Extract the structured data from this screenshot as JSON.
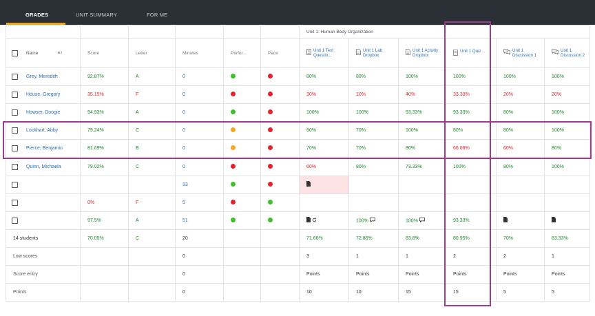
{
  "tabs": [
    {
      "label": "GRADES",
      "active": true
    },
    {
      "label": "UNIT SUMMARY",
      "active": false
    },
    {
      "label": "FOR ME",
      "active": false
    }
  ],
  "unit_title": "Unit 1: Human Body Organization",
  "columns": {
    "name": "Name",
    "score": "Score",
    "letter": "Letter",
    "minutes": "Minutes",
    "performance": "Perfor...",
    "pace": "Pace"
  },
  "assignments": [
    {
      "label": "Unit 1 Text Questio...",
      "icon": "document-icon"
    },
    {
      "label": "Unit 1 Lab Dropbox",
      "icon": "dropbox-icon"
    },
    {
      "label": "Unit 1 Activity Dropbox",
      "icon": "dropbox-icon"
    },
    {
      "label": "Unit 1 Quiz",
      "icon": "quiz-icon"
    },
    {
      "label": "Unit 1 Discussion 1",
      "icon": "discussion-icon"
    },
    {
      "label": "Unit 1 Discussion 2",
      "icon": "discussion-icon"
    }
  ],
  "students": [
    {
      "name": "Grey, Meredith",
      "score": "92.87%",
      "letter": "A",
      "minutes": "0",
      "performance": "green",
      "pace": "red",
      "grades": [
        "80%",
        "80%",
        "100%",
        "100%",
        "100%",
        "100%"
      ]
    },
    {
      "name": "House, Gregory",
      "score": "35.15%",
      "letter": "F",
      "minutes": "0",
      "performance": "red",
      "pace": "red",
      "grades": [
        "30%",
        "10%",
        "40%",
        "33.33%",
        "20%",
        "20%"
      ]
    },
    {
      "name": "Howser, Doogie",
      "score": "94.93%",
      "letter": "A",
      "minutes": "0",
      "performance": "green",
      "pace": "red",
      "grades": [
        "100%",
        "100%",
        "93.33%",
        "93.33%",
        "80%",
        "100%"
      ]
    },
    {
      "name": "Lockhart, Abby",
      "score": "79.24%",
      "letter": "C",
      "minutes": "0",
      "performance": "orange",
      "pace": "red",
      "grades": [
        "90%",
        "70%",
        "100%",
        "80%",
        "80%",
        "100%"
      ]
    },
    {
      "name": "Pierce, Benjamin",
      "score": "81.69%",
      "letter": "B",
      "minutes": "0",
      "performance": "orange",
      "pace": "red",
      "grades": [
        "70%",
        "70%",
        "80%",
        "66.66%",
        "60%",
        "80%"
      ]
    },
    {
      "name": "Quinn, Michaela",
      "score": "79.02%",
      "letter": "C",
      "minutes": "0",
      "performance": "red",
      "pace": "red",
      "grades": [
        "60%",
        "80%",
        "73.33%",
        "100%",
        "80%",
        "100%"
      ]
    },
    {
      "name": "",
      "score": "",
      "letter": "",
      "minutes": "33",
      "performance": "green",
      "pace": "red",
      "grades": [
        "",
        "",
        "",
        "",
        "",
        ""
      ]
    },
    {
      "name": "",
      "score": "0%",
      "letter": "F",
      "minutes": "5",
      "performance": "red",
      "pace": "green",
      "grades": [
        "",
        "",
        "",
        "",
        "",
        ""
      ]
    },
    {
      "name": "",
      "score": "97.5%",
      "letter": "A",
      "minutes": "51",
      "performance": "green",
      "pace": "green",
      "grades": [
        "",
        "100%",
        "100%",
        "93.33%",
        "",
        ""
      ]
    }
  ],
  "summary": {
    "label": "14 students",
    "score": "70.05%",
    "letter": "C",
    "minutes": "20",
    "grades": [
      "71.66%",
      "72.85%",
      "83.8%",
      "80.95%",
      "70%",
      "83.33%"
    ]
  },
  "low_scores": {
    "label": "Low scores",
    "minutes": "0",
    "values": [
      "3",
      "1",
      "1",
      "2",
      "2",
      "1"
    ]
  },
  "score_entry": {
    "label": "Score entry",
    "minutes": "0",
    "values": [
      "Points",
      "Points",
      "Points",
      "Points",
      "Points",
      "Points"
    ]
  },
  "points": {
    "label": "Points",
    "minutes": "0",
    "values": [
      "10",
      "10",
      "15",
      "15",
      "5",
      "5"
    ]
  },
  "colors": {
    "header_bg": "#2b2f36",
    "tab_underline": "#f0a51a",
    "highlight": "#9b3d8c",
    "green_text": "#1a8a2c",
    "red_text": "#e0242b",
    "link_blue": "#2a6fb8"
  }
}
